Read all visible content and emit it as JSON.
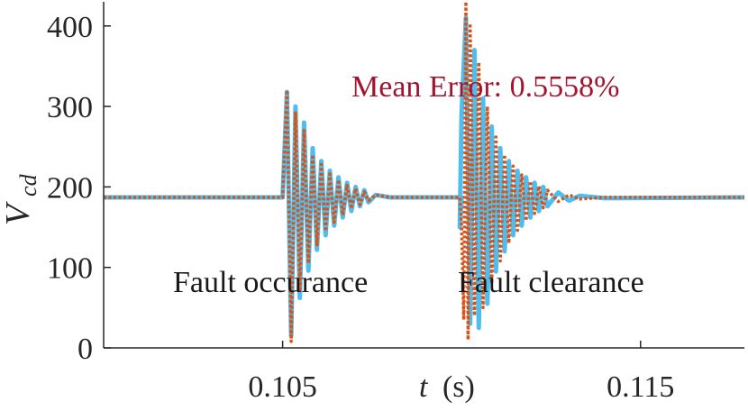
{
  "chart_data": {
    "type": "line",
    "xlabel_var": "t",
    "xlabel_unit": "(s)",
    "ylabel_base": "V",
    "ylabel_sub": "cd",
    "xlim": [
      0.1,
      0.1179
    ],
    "ylim": [
      0,
      430
    ],
    "xticks": [
      0.105,
      0.115
    ],
    "xtick_labels": [
      "0.105",
      "0.115"
    ],
    "yticks": [
      0,
      100,
      200,
      300,
      400
    ],
    "ytick_labels": [
      "0",
      "100",
      "200",
      "300",
      "400"
    ],
    "grid": false,
    "annotations": {
      "fault_occurance": "Fault occurance",
      "fault_clearance": "Fault clearance",
      "mean_error": "Mean Error: 0.5558%"
    },
    "colors": {
      "series_solid": "#4DBEEE",
      "series_dotted": "#D95319",
      "mean_error": "#A2142F",
      "axis": "#262626"
    },
    "series": [
      {
        "style": "solid",
        "x": [
          0.1,
          0.10495,
          0.105,
          0.10512,
          0.10524,
          0.10536,
          0.10548,
          0.1056,
          0.10572,
          0.10584,
          0.10596,
          0.10608,
          0.1062,
          0.10632,
          0.10644,
          0.10656,
          0.10668,
          0.1068,
          0.10692,
          0.10704,
          0.10716,
          0.10728,
          0.1074,
          0.1076,
          0.108,
          0.11,
          0.10995,
          0.11,
          0.11012,
          0.11024,
          0.11036,
          0.11048,
          0.1106,
          0.11072,
          0.11084,
          0.11096,
          0.11108,
          0.1112,
          0.11132,
          0.11144,
          0.11156,
          0.11168,
          0.1118,
          0.11192,
          0.11204,
          0.11216,
          0.11228,
          0.1124,
          0.1127,
          0.113,
          0.1133,
          0.114,
          0.1179
        ],
        "y": [
          187,
          187,
          187,
          318,
          15,
          300,
          62,
          280,
          96,
          248,
          122,
          232,
          140,
          220,
          152,
          212,
          162,
          205,
          170,
          200,
          176,
          196,
          181,
          190,
          187,
          187,
          150,
          292,
          410,
          30,
          370,
          25,
          310,
          55,
          275,
          95,
          248,
          120,
          232,
          140,
          220,
          152,
          212,
          162,
          205,
          170,
          200,
          176,
          193,
          183,
          189,
          186,
          187
        ]
      },
      {
        "style": "dotted",
        "x": [
          0.1,
          0.10495,
          0.105,
          0.10512,
          0.10524,
          0.10536,
          0.10548,
          0.1056,
          0.10572,
          0.10584,
          0.10596,
          0.10608,
          0.1062,
          0.10632,
          0.10644,
          0.10656,
          0.10668,
          0.1068,
          0.10692,
          0.10704,
          0.10716,
          0.10728,
          0.1074,
          0.1076,
          0.108,
          0.10995,
          0.11,
          0.11006,
          0.11012,
          0.11018,
          0.11024,
          0.11036,
          0.11048,
          0.1106,
          0.11072,
          0.11084,
          0.11096,
          0.11108,
          0.1112,
          0.11132,
          0.11144,
          0.11156,
          0.11168,
          0.1118,
          0.11192,
          0.11204,
          0.11216,
          0.11228,
          0.1124,
          0.1127,
          0.113,
          0.1133,
          0.114,
          0.1179
        ],
        "y": [
          187,
          187,
          187,
          320,
          8,
          292,
          70,
          270,
          105,
          240,
          128,
          228,
          145,
          216,
          156,
          209,
          165,
          202,
          173,
          198,
          178,
          194,
          183,
          190,
          187,
          187,
          150,
          35,
          430,
          10,
          400,
          40,
          355,
          50,
          300,
          80,
          262,
          108,
          240,
          130,
          226,
          146,
          215,
          158,
          207,
          167,
          201,
          174,
          196,
          182,
          190,
          185,
          187,
          187
        ]
      }
    ]
  }
}
